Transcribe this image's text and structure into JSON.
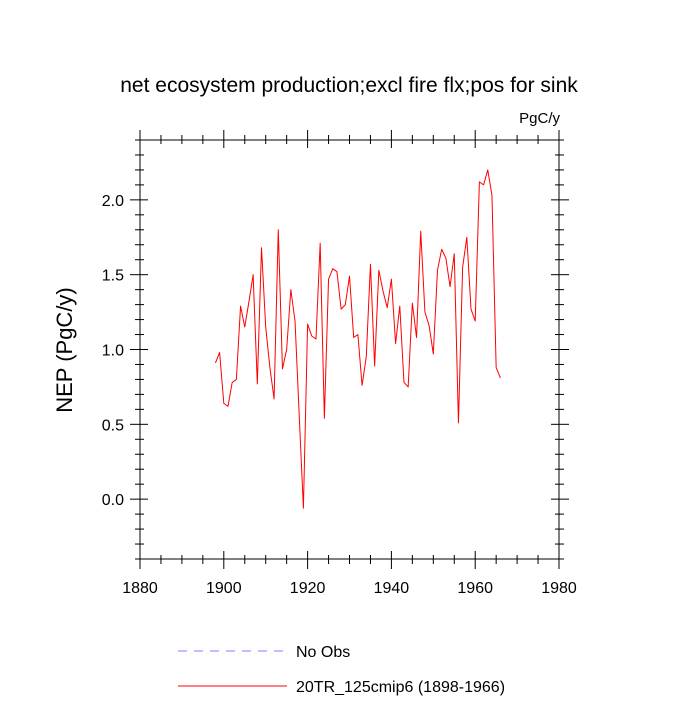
{
  "chart_data": {
    "type": "line",
    "title": "net ecosystem production;excl fire flx;pos for sink",
    "units_label": "PgC/y",
    "ylabel": "NEP  (PgC/y)",
    "xlabel": "",
    "xlim": [
      1880,
      1980
    ],
    "ylim": [
      -0.4,
      2.4
    ],
    "x_ticks": [
      1880,
      1900,
      1920,
      1940,
      1960,
      1980
    ],
    "x_tick_labels": [
      "1880",
      "1900",
      "1920",
      "1940",
      "1960",
      "1980"
    ],
    "y_ticks": [
      0.0,
      0.5,
      1.0,
      1.5,
      2.0
    ],
    "y_tick_labels": [
      "0.0",
      "0.5",
      "1.0",
      "1.5",
      "2.0"
    ],
    "grid": false,
    "legend_position": "bottom-left",
    "series": [
      {
        "name": "20TR_125cmip6 (1898-1966)",
        "color": "#ff0000",
        "dash": "solid",
        "x": [
          1898,
          1899,
          1900,
          1901,
          1902,
          1903,
          1904,
          1905,
          1906,
          1907,
          1908,
          1909,
          1910,
          1911,
          1912,
          1913,
          1914,
          1915,
          1916,
          1917,
          1918,
          1919,
          1920,
          1921,
          1922,
          1923,
          1924,
          1925,
          1926,
          1927,
          1928,
          1929,
          1930,
          1931,
          1932,
          1933,
          1934,
          1935,
          1936,
          1937,
          1938,
          1939,
          1940,
          1941,
          1942,
          1943,
          1944,
          1945,
          1946,
          1947,
          1948,
          1949,
          1950,
          1951,
          1952,
          1953,
          1954,
          1955,
          1956,
          1957,
          1958,
          1959,
          1960,
          1961,
          1962,
          1963,
          1964,
          1965,
          1966
        ],
        "values": [
          0.91,
          0.98,
          0.64,
          0.62,
          0.78,
          0.8,
          1.29,
          1.15,
          1.32,
          1.5,
          0.77,
          1.68,
          1.15,
          0.88,
          0.67,
          1.8,
          0.87,
          1.0,
          1.4,
          1.19,
          0.56,
          -0.06,
          1.17,
          1.09,
          1.07,
          1.71,
          0.54,
          1.47,
          1.54,
          1.52,
          1.27,
          1.3,
          1.49,
          1.08,
          1.1,
          0.76,
          0.95,
          1.57,
          0.89,
          1.53,
          1.39,
          1.28,
          1.47,
          1.04,
          1.29,
          0.78,
          0.75,
          1.31,
          1.08,
          1.79,
          1.25,
          1.16,
          0.97,
          1.53,
          1.67,
          1.61,
          1.42,
          1.64,
          0.51,
          1.55,
          1.75,
          1.27,
          1.19,
          2.12,
          2.1,
          2.2,
          2.03,
          0.88,
          0.81
        ]
      }
    ],
    "legend": [
      {
        "label": "No Obs",
        "color": "#8080ff",
        "dash": "dashed"
      },
      {
        "label": "20TR_125cmip6 (1898-1966)",
        "color": "#ff0000",
        "dash": "solid"
      }
    ]
  }
}
